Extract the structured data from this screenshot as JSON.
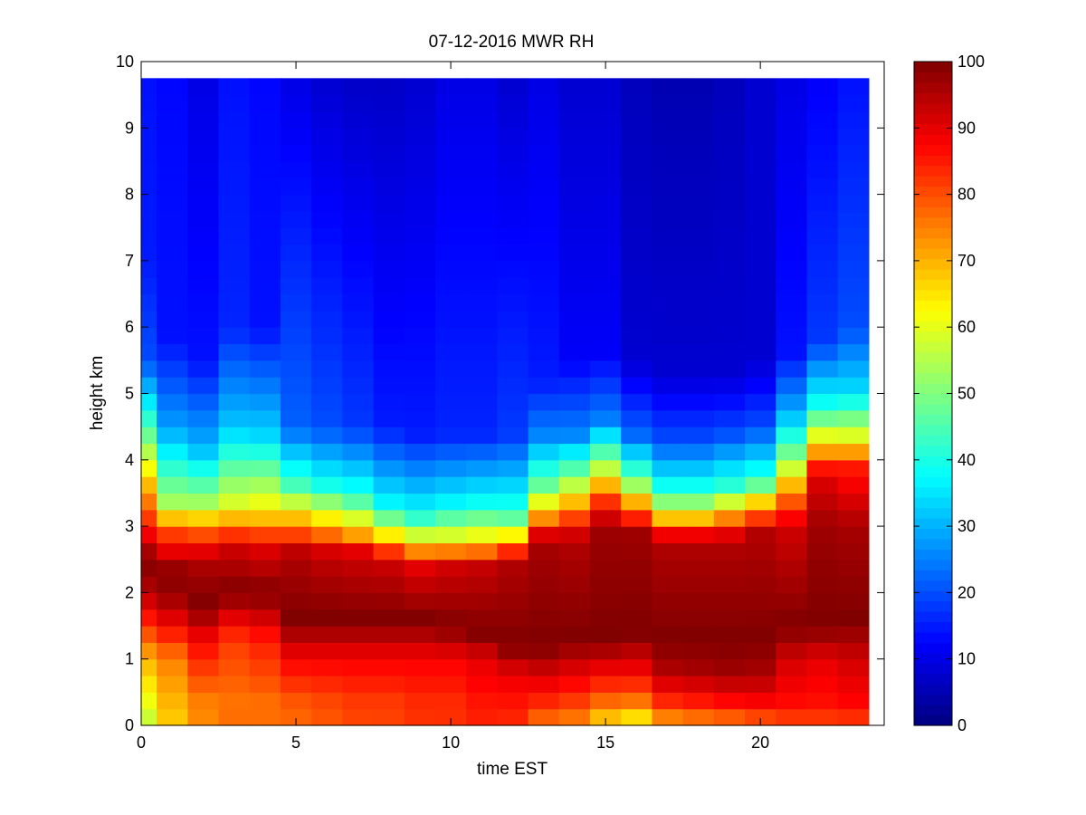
{
  "chart_data": {
    "type": "heatmap",
    "title": "07-12-2016 MWR RH",
    "xlabel": "time EST",
    "ylabel": "height km",
    "xlim": [
      0,
      24
    ],
    "ylim": [
      0,
      10
    ],
    "x_ticks": [
      0,
      5,
      10,
      15,
      20
    ],
    "y_ticks": [
      0,
      1,
      2,
      3,
      4,
      5,
      6,
      7,
      8,
      9,
      10
    ],
    "colorbar": {
      "min": 0,
      "max": 100,
      "ticks": [
        0,
        10,
        20,
        30,
        40,
        50,
        60,
        70,
        80,
        90,
        100
      ],
      "colormap": "jet"
    },
    "grid": false,
    "time_hours": [
      0,
      1,
      2,
      3,
      4,
      5,
      6,
      7,
      8,
      9,
      10,
      11,
      12,
      13,
      14,
      15,
      16,
      17,
      18,
      19,
      20,
      21,
      22,
      23
    ],
    "data_top_km": 9.75,
    "profiles": [
      [
        {
          "h": 0,
          "v": 55
        },
        {
          "h": 0.15,
          "v": 58
        },
        {
          "h": 1,
          "v": 70
        },
        {
          "h": 2,
          "v": 95
        },
        {
          "h": 2.5,
          "v": 100
        },
        {
          "h": 3,
          "v": 85
        },
        {
          "h": 3.6,
          "v": 70
        },
        {
          "h": 4.3,
          "v": 50
        },
        {
          "h": 5.5,
          "v": 20
        },
        {
          "h": 7,
          "v": 15
        },
        {
          "h": 9.75,
          "v": 14
        }
      ],
      [
        {
          "h": 0,
          "v": 68
        },
        {
          "h": 0.15,
          "v": 68
        },
        {
          "h": 1,
          "v": 75
        },
        {
          "h": 1.8,
          "v": 95
        },
        {
          "h": 2.3,
          "v": 100
        },
        {
          "h": 3,
          "v": 78
        },
        {
          "h": 3.3,
          "v": 55
        },
        {
          "h": 4.5,
          "v": 28
        },
        {
          "h": 5.8,
          "v": 14
        },
        {
          "h": 9.75,
          "v": 13
        }
      ],
      [
        {
          "h": 0,
          "v": 85
        },
        {
          "h": 0.15,
          "v": 72
        },
        {
          "h": 1.3,
          "v": 88
        },
        {
          "h": 1.8,
          "v": 100
        },
        {
          "h": 2.5,
          "v": 95
        },
        {
          "h": 3,
          "v": 75
        },
        {
          "h": 3.3,
          "v": 55
        },
        {
          "h": 4.2,
          "v": 30
        },
        {
          "h": 5.5,
          "v": 14
        },
        {
          "h": 9.75,
          "v": 10
        }
      ],
      [
        {
          "h": 0,
          "v": 85
        },
        {
          "h": 0.15,
          "v": 75
        },
        {
          "h": 1.3,
          "v": 82
        },
        {
          "h": 2,
          "v": 100
        },
        {
          "h": 2.7,
          "v": 92
        },
        {
          "h": 3.3,
          "v": 60
        },
        {
          "h": 4.5,
          "v": 32
        },
        {
          "h": 6,
          "v": 16
        },
        {
          "h": 9.75,
          "v": 14
        }
      ],
      [
        {
          "h": 0,
          "v": 85
        },
        {
          "h": 0.15,
          "v": 75
        },
        {
          "h": 1.3,
          "v": 85
        },
        {
          "h": 2,
          "v": 100
        },
        {
          "h": 2.7,
          "v": 90
        },
        {
          "h": 3.2,
          "v": 65
        },
        {
          "h": 4.4,
          "v": 33
        },
        {
          "h": 6,
          "v": 14
        },
        {
          "h": 9.75,
          "v": 13
        }
      ],
      [
        {
          "h": 0,
          "v": 86
        },
        {
          "h": 0.15,
          "v": 76
        },
        {
          "h": 1,
          "v": 88
        },
        {
          "h": 1.6,
          "v": 100
        },
        {
          "h": 2.6,
          "v": 95
        },
        {
          "h": 3,
          "v": 75
        },
        {
          "h": 3.6,
          "v": 45
        },
        {
          "h": 4.5,
          "v": 22
        },
        {
          "h": 9.75,
          "v": 10
        }
      ],
      [
        {
          "h": 0,
          "v": 86
        },
        {
          "h": 0.15,
          "v": 78
        },
        {
          "h": 1,
          "v": 88
        },
        {
          "h": 1.6,
          "v": 100
        },
        {
          "h": 2.6,
          "v": 93
        },
        {
          "h": 3,
          "v": 70
        },
        {
          "h": 3.6,
          "v": 40
        },
        {
          "h": 4.5,
          "v": 20
        },
        {
          "h": 9.75,
          "v": 8
        }
      ],
      [
        {
          "h": 0,
          "v": 86
        },
        {
          "h": 0.15,
          "v": 80
        },
        {
          "h": 1,
          "v": 88
        },
        {
          "h": 1.6,
          "v": 100
        },
        {
          "h": 2.6,
          "v": 92
        },
        {
          "h": 2.9,
          "v": 70
        },
        {
          "h": 3.5,
          "v": 40
        },
        {
          "h": 4.5,
          "v": 18
        },
        {
          "h": 9.75,
          "v": 7
        }
      ],
      [
        {
          "h": 0,
          "v": 87
        },
        {
          "h": 0.15,
          "v": 80
        },
        {
          "h": 1,
          "v": 88
        },
        {
          "h": 1.6,
          "v": 100
        },
        {
          "h": 2.5,
          "v": 92
        },
        {
          "h": 2.9,
          "v": 62
        },
        {
          "h": 3.3,
          "v": 38
        },
        {
          "h": 4.5,
          "v": 15
        },
        {
          "h": 9.75,
          "v": 7
        }
      ],
      [
        {
          "h": 0,
          "v": 87
        },
        {
          "h": 0.15,
          "v": 82
        },
        {
          "h": 1,
          "v": 88
        },
        {
          "h": 1.6,
          "v": 100
        },
        {
          "h": 2.4,
          "v": 90
        },
        {
          "h": 2.8,
          "v": 62
        },
        {
          "h": 3.2,
          "v": 38
        },
        {
          "h": 4.4,
          "v": 15
        },
        {
          "h": 9.75,
          "v": 8
        }
      ],
      [
        {
          "h": 0,
          "v": 88
        },
        {
          "h": 0.15,
          "v": 82
        },
        {
          "h": 1,
          "v": 88
        },
        {
          "h": 1.5,
          "v": 100
        },
        {
          "h": 2.4,
          "v": 92
        },
        {
          "h": 2.8,
          "v": 62
        },
        {
          "h": 3.3,
          "v": 38
        },
        {
          "h": 4.4,
          "v": 16
        },
        {
          "h": 9.75,
          "v": 10
        }
      ],
      [
        {
          "h": 0,
          "v": 88
        },
        {
          "h": 0.15,
          "v": 84
        },
        {
          "h": 1,
          "v": 90
        },
        {
          "h": 1.4,
          "v": 100
        },
        {
          "h": 2.4,
          "v": 93
        },
        {
          "h": 2.8,
          "v": 64
        },
        {
          "h": 3.3,
          "v": 40
        },
        {
          "h": 4.4,
          "v": 16
        },
        {
          "h": 9.75,
          "v": 10
        }
      ],
      [
        {
          "h": 0,
          "v": 85
        },
        {
          "h": 0.15,
          "v": 84
        },
        {
          "h": 0.8,
          "v": 90
        },
        {
          "h": 1.2,
          "v": 100
        },
        {
          "h": 2.5,
          "v": 95
        },
        {
          "h": 2.8,
          "v": 68
        },
        {
          "h": 3.2,
          "v": 42
        },
        {
          "h": 4.4,
          "v": 18
        },
        {
          "h": 9.75,
          "v": 8
        }
      ],
      [
        {
          "h": 0,
          "v": 70
        },
        {
          "h": 0.15,
          "v": 80
        },
        {
          "h": 0.8,
          "v": 92
        },
        {
          "h": 1.2,
          "v": 100
        },
        {
          "h": 2.8,
          "v": 96
        },
        {
          "h": 3.1,
          "v": 75
        },
        {
          "h": 3.6,
          "v": 48
        },
        {
          "h": 4.4,
          "v": 25
        },
        {
          "h": 5.2,
          "v": 15
        },
        {
          "h": 9.75,
          "v": 10
        }
      ],
      [
        {
          "h": 0,
          "v": 68
        },
        {
          "h": 0.15,
          "v": 78
        },
        {
          "h": 0.8,
          "v": 90
        },
        {
          "h": 1.3,
          "v": 100
        },
        {
          "h": 2.8,
          "v": 95
        },
        {
          "h": 3.2,
          "v": 78
        },
        {
          "h": 3.7,
          "v": 52
        },
        {
          "h": 4.4,
          "v": 25
        },
        {
          "h": 5.5,
          "v": 12
        },
        {
          "h": 9.75,
          "v": 8
        }
      ],
      [
        {
          "h": 0,
          "v": 55
        },
        {
          "h": 0.15,
          "v": 72
        },
        {
          "h": 0.8,
          "v": 88
        },
        {
          "h": 1.3,
          "v": 100
        },
        {
          "h": 3,
          "v": 97
        },
        {
          "h": 3.4,
          "v": 82
        },
        {
          "h": 3.9,
          "v": 55
        },
        {
          "h": 4.6,
          "v": 25
        },
        {
          "h": 5.6,
          "v": 12
        },
        {
          "h": 9.75,
          "v": 8
        }
      ],
      [
        {
          "h": 0,
          "v": 45
        },
        {
          "h": 0.15,
          "v": 70
        },
        {
          "h": 0.8,
          "v": 88
        },
        {
          "h": 1.4,
          "v": 100
        },
        {
          "h": 2.9,
          "v": 97
        },
        {
          "h": 3.3,
          "v": 75
        },
        {
          "h": 3.7,
          "v": 48
        },
        {
          "h": 4.4,
          "v": 22
        },
        {
          "h": 5.5,
          "v": 8
        },
        {
          "h": 9.75,
          "v": 6
        }
      ],
      [
        {
          "h": 0,
          "v": 60
        },
        {
          "h": 0.15,
          "v": 78
        },
        {
          "h": 0.8,
          "v": 95
        },
        {
          "h": 1.3,
          "v": 100
        },
        {
          "h": 2.8,
          "v": 95
        },
        {
          "h": 3.1,
          "v": 70
        },
        {
          "h": 3.5,
          "v": 42
        },
        {
          "h": 4.3,
          "v": 20
        },
        {
          "h": 5.3,
          "v": 8
        },
        {
          "h": 9.75,
          "v": 5
        }
      ],
      [
        {
          "h": 0,
          "v": 62
        },
        {
          "h": 0.15,
          "v": 80
        },
        {
          "h": 0.8,
          "v": 96
        },
        {
          "h": 1.3,
          "v": 100
        },
        {
          "h": 2.8,
          "v": 95
        },
        {
          "h": 3.1,
          "v": 70
        },
        {
          "h": 3.5,
          "v": 42
        },
        {
          "h": 4.3,
          "v": 20
        },
        {
          "h": 5.3,
          "v": 8
        },
        {
          "h": 9.75,
          "v": 5
        }
      ],
      [
        {
          "h": 0,
          "v": 62
        },
        {
          "h": 0.15,
          "v": 82
        },
        {
          "h": 0.8,
          "v": 97
        },
        {
          "h": 1.3,
          "v": 100
        },
        {
          "h": 2.8,
          "v": 95
        },
        {
          "h": 3.2,
          "v": 70
        },
        {
          "h": 3.6,
          "v": 42
        },
        {
          "h": 4.4,
          "v": 20
        },
        {
          "h": 5.3,
          "v": 8
        },
        {
          "h": 9.75,
          "v": 6
        }
      ],
      [
        {
          "h": 0,
          "v": 65
        },
        {
          "h": 0.15,
          "v": 84
        },
        {
          "h": 0.8,
          "v": 96
        },
        {
          "h": 1.3,
          "v": 100
        },
        {
          "h": 2.9,
          "v": 95
        },
        {
          "h": 3.3,
          "v": 72
        },
        {
          "h": 3.7,
          "v": 42
        },
        {
          "h": 4.5,
          "v": 20
        },
        {
          "h": 5.5,
          "v": 8
        },
        {
          "h": 9.75,
          "v": 8
        }
      ],
      [
        {
          "h": 0,
          "v": 70
        },
        {
          "h": 0.15,
          "v": 85
        },
        {
          "h": 1,
          "v": 92
        },
        {
          "h": 1.5,
          "v": 100
        },
        {
          "h": 3,
          "v": 92
        },
        {
          "h": 3.5,
          "v": 75
        },
        {
          "h": 4,
          "v": 52
        },
        {
          "h": 4.7,
          "v": 30
        },
        {
          "h": 5.6,
          "v": 14
        },
        {
          "h": 9.75,
          "v": 10
        }
      ],
      [
        {
          "h": 0,
          "v": 70
        },
        {
          "h": 0.15,
          "v": 85
        },
        {
          "h": 1,
          "v": 90
        },
        {
          "h": 1.5,
          "v": 100
        },
        {
          "h": 3,
          "v": 97
        },
        {
          "h": 3.8,
          "v": 90
        },
        {
          "h": 4.2,
          "v": 68
        },
        {
          "h": 4.8,
          "v": 40
        },
        {
          "h": 5.8,
          "v": 18
        },
        {
          "h": 9.75,
          "v": 12
        }
      ],
      [
        {
          "h": 0,
          "v": 70
        },
        {
          "h": 0.15,
          "v": 86
        },
        {
          "h": 1,
          "v": 92
        },
        {
          "h": 1.6,
          "v": 100
        },
        {
          "h": 3,
          "v": 96
        },
        {
          "h": 3.9,
          "v": 85
        },
        {
          "h": 4.3,
          "v": 62
        },
        {
          "h": 5,
          "v": 35
        },
        {
          "h": 6,
          "v": 20
        },
        {
          "h": 9.75,
          "v": 14
        }
      ]
    ]
  }
}
